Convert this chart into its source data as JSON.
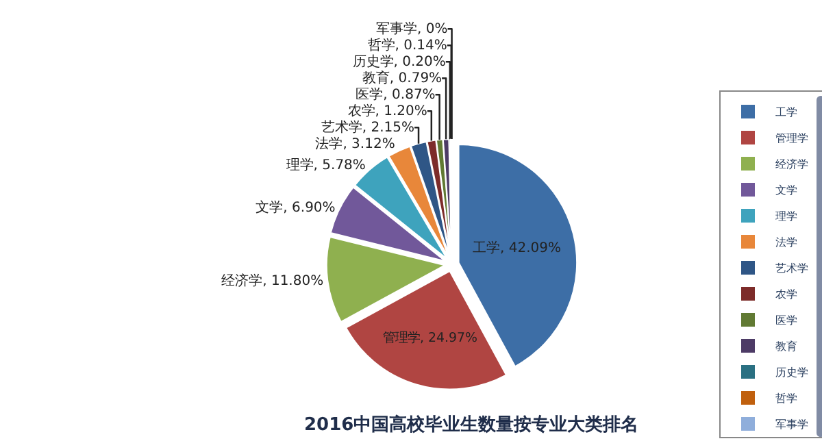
{
  "chart_data": {
    "type": "pie",
    "title": "2016中国高校毕业生数量按专业大类排名",
    "categories": [
      "工学",
      "管理学",
      "经济学",
      "文学",
      "理学",
      "法学",
      "艺术学",
      "农学",
      "医学",
      "教育",
      "历史学",
      "哲学",
      "军事学"
    ],
    "values": [
      42.09,
      24.97,
      11.8,
      6.9,
      5.78,
      3.12,
      2.15,
      1.2,
      0.87,
      0.79,
      0.2,
      0.14,
      0
    ],
    "value_labels": [
      "工学, 42.09%",
      "管理学, 24.97%",
      "经济学, 11.80%",
      "文学, 6.90%",
      "理学, 5.78%",
      "法学, 3.12%",
      "艺术学, 2.15%",
      "农学, 1.20%",
      "医学, 0.87%",
      "教育, 0.79%",
      "历史学, 0.20%",
      "哲学, 0.14%",
      "军事学, 0%"
    ],
    "colors": [
      "#3d6ea6",
      "#b04542",
      "#8fb04f",
      "#71589a",
      "#3ea3bd",
      "#e8873a",
      "#2f5686",
      "#7d2c2a",
      "#617a33",
      "#4d3b66",
      "#2a7082",
      "#c0600e",
      "#8faedb"
    ],
    "legend": "right"
  }
}
